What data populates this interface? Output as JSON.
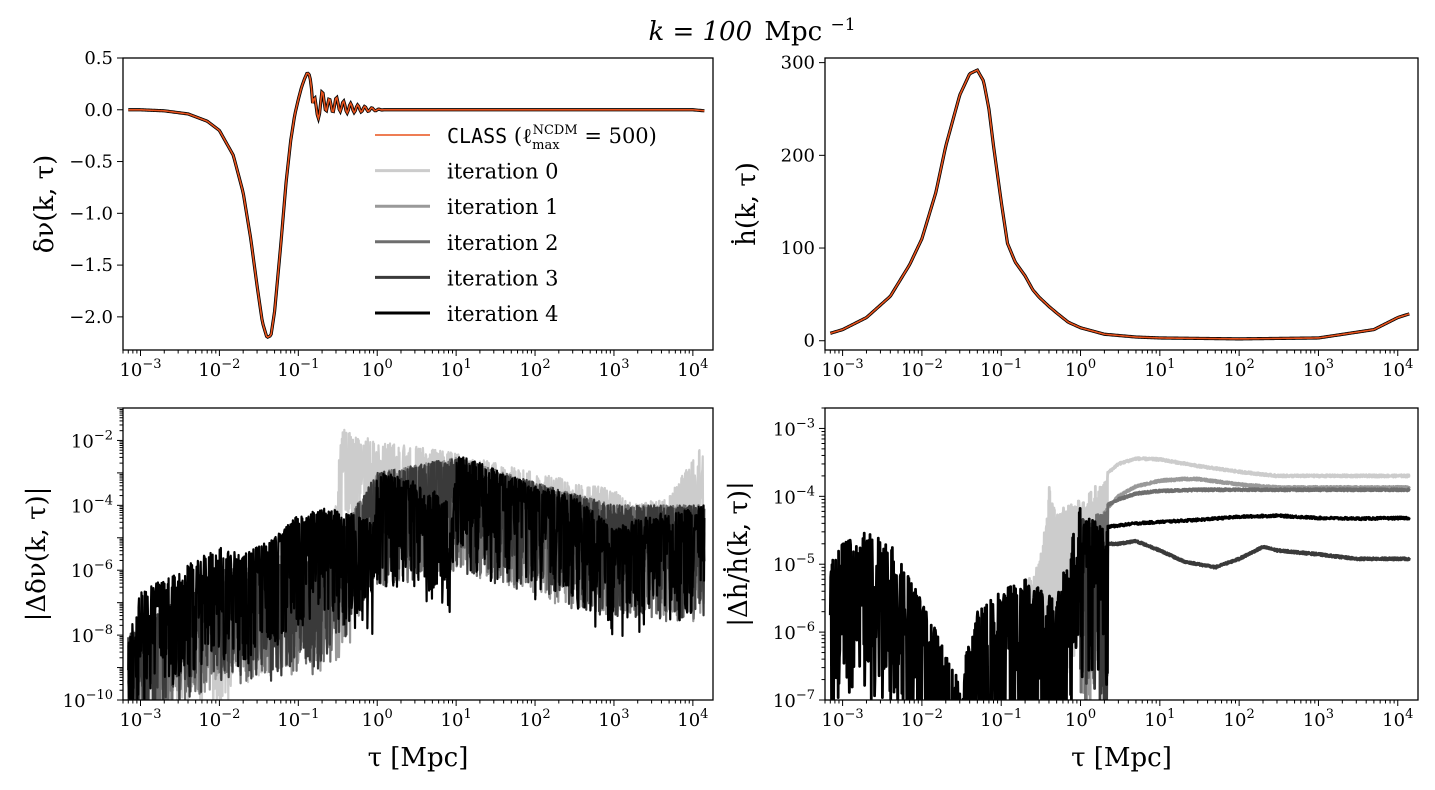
{
  "figure": {
    "suptitle_k": "k = 100",
    "suptitle_unit": "Mpc",
    "suptitle_exp": "−1"
  },
  "colors": {
    "class": "#e8521c",
    "iteration_0": "#cccccc",
    "iteration_1": "#999999",
    "iteration_2": "#6e6e6e",
    "iteration_3": "#3a3a3a",
    "iteration_4": "#000000"
  },
  "chart_data": [
    {
      "id": "delta_nu",
      "type": "line",
      "x_scale": "log",
      "xlim": [
        0.0006,
        18000
      ],
      "ylim": [
        -2.32,
        0.5
      ],
      "xticks": [
        0.001,
        0.01,
        0.1,
        1,
        10,
        100,
        1000,
        10000
      ],
      "xtick_labels": [
        [
          "10",
          "−3"
        ],
        [
          "10",
          "−2"
        ],
        [
          "10",
          "−1"
        ],
        [
          "10",
          "0"
        ],
        [
          "10",
          "1"
        ],
        [
          "10",
          "2"
        ],
        [
          "10",
          "3"
        ],
        [
          "10",
          "4"
        ]
      ],
      "yticks": [
        0.5,
        0.0,
        -0.5,
        -1.0,
        -1.5,
        -2.0
      ],
      "ytick_labels": [
        "0.5",
        "0.0",
        "−0.5",
        "−1.0",
        "−1.5",
        "−2.0"
      ],
      "ylabel": "δν(k, τ)",
      "xlabel": "",
      "legend_position": "center-right",
      "legend": [
        {
          "prefix": "CLASS",
          "label": " (ℓ",
          "sup": "NCDM",
          "sub": "max",
          "suffix": " = 500)",
          "color_key": "class"
        },
        {
          "label": "iteration 0",
          "color_key": "iteration_0"
        },
        {
          "label": "iteration 1",
          "color_key": "iteration_1"
        },
        {
          "label": "iteration 2",
          "color_key": "iteration_2"
        },
        {
          "label": "iteration 3",
          "color_key": "iteration_3"
        },
        {
          "label": "iteration 4",
          "color_key": "iteration_4"
        }
      ],
      "series": [
        {
          "name": "CLASS (ℓmax NCDM = 500)",
          "x": [
            0.0007,
            0.001,
            0.002,
            0.004,
            0.007,
            0.01,
            0.015,
            0.02,
            0.025,
            0.03,
            0.035,
            0.04,
            0.045,
            0.05,
            0.06,
            0.07,
            0.08,
            0.09,
            0.1,
            0.11,
            0.12,
            0.13,
            0.14,
            0.15,
            0.17,
            0.2,
            0.25,
            0.3,
            0.4,
            0.6,
            1,
            3,
            10,
            100,
            1000,
            10000,
            14000
          ],
          "y": [
            0.0,
            0.0,
            -0.01,
            -0.04,
            -0.11,
            -0.2,
            -0.44,
            -0.8,
            -1.25,
            -1.7,
            -2.05,
            -2.2,
            -2.18,
            -1.95,
            -1.3,
            -0.7,
            -0.3,
            -0.05,
            0.1,
            0.22,
            0.3,
            0.36,
            0.33,
            0.15,
            -0.05,
            0.1,
            0.03,
            0.06,
            0.02,
            0.01,
            0.0,
            0.0,
            0.0,
            0.0,
            0.0,
            0.0,
            -0.01
          ]
        }
      ]
    },
    {
      "id": "hdot",
      "type": "line",
      "x_scale": "log",
      "xlim": [
        0.0006,
        18000
      ],
      "ylim": [
        -10,
        305
      ],
      "xticks": [
        0.001,
        0.01,
        0.1,
        1,
        10,
        100,
        1000,
        10000
      ],
      "xtick_labels": [
        [
          "10",
          "−3"
        ],
        [
          "10",
          "−2"
        ],
        [
          "10",
          "−1"
        ],
        [
          "10",
          "0"
        ],
        [
          "10",
          "1"
        ],
        [
          "10",
          "2"
        ],
        [
          "10",
          "3"
        ],
        [
          "10",
          "4"
        ]
      ],
      "yticks": [
        300,
        200,
        100,
        0
      ],
      "ytick_labels": [
        "300",
        "200",
        "100",
        "0"
      ],
      "ylabel": "ḣ(k, τ)",
      "xlabel": "",
      "series": [
        {
          "name": "CLASS",
          "x": [
            0.0007,
            0.001,
            0.002,
            0.004,
            0.007,
            0.01,
            0.015,
            0.02,
            0.03,
            0.04,
            0.05,
            0.06,
            0.07,
            0.08,
            0.1,
            0.12,
            0.15,
            0.2,
            0.25,
            0.3,
            0.4,
            0.5,
            0.7,
            1,
            2,
            5,
            10,
            100,
            1000,
            5000,
            10000,
            14000
          ],
          "y": [
            8,
            12,
            25,
            48,
            82,
            110,
            160,
            210,
            265,
            288,
            292,
            280,
            250,
            210,
            150,
            105,
            85,
            70,
            55,
            47,
            37,
            30,
            20,
            14,
            7,
            4,
            3,
            2,
            3,
            12,
            25,
            29
          ]
        }
      ]
    },
    {
      "id": "delta_nu_error",
      "type": "line",
      "x_scale": "log",
      "y_scale": "log",
      "xlim": [
        0.0006,
        18000
      ],
      "ylim": [
        1e-10,
        0.1
      ],
      "xticks": [
        0.001,
        0.01,
        0.1,
        1,
        10,
        100,
        1000,
        10000
      ],
      "xtick_labels": [
        [
          "10",
          "−3"
        ],
        [
          "10",
          "−2"
        ],
        [
          "10",
          "−1"
        ],
        [
          "10",
          "0"
        ],
        [
          "10",
          "1"
        ],
        [
          "10",
          "2"
        ],
        [
          "10",
          "3"
        ],
        [
          "10",
          "4"
        ]
      ],
      "yticks": [
        0.01,
        0.0001,
        1e-06,
        1e-08,
        1e-10
      ],
      "ytick_labels": [
        [
          "10",
          "−2"
        ],
        [
          "10",
          "−4"
        ],
        [
          "10",
          "−6"
        ],
        [
          "10",
          "−8"
        ],
        [
          "10",
          "−10"
        ]
      ],
      "ylabel": "|Δδν(k, τ)|",
      "xlabel": "τ [Mpc]",
      "series": [
        {
          "name": "iteration 0",
          "x": [
            0.0007,
            0.001,
            0.005,
            0.011,
            0.02,
            0.1,
            0.3,
            0.35,
            0.5,
            1,
            10,
            100,
            1000,
            2000,
            5000,
            14000
          ],
          "y": [
            1e-08,
            3e-08,
            2e-07,
            1e-07,
            1e-06,
            5e-06,
            0.0001,
            0.03,
            0.015,
            0.01,
            0.004,
            0.001,
            0.0003,
            0.0001,
            0.0002,
            0.01
          ]
        },
        {
          "name": "iteration 1",
          "x": [
            0.0007,
            0.01,
            0.2,
            0.4,
            1,
            10,
            100,
            1000,
            14000
          ],
          "y": [
            1e-08,
            1e-06,
            2e-06,
            1e-05,
            0.001,
            0.003,
            0.0005,
            0.0001,
            0.0001
          ]
        },
        {
          "name": "iteration 2",
          "x": [
            0.0007,
            0.01,
            0.2,
            1,
            10,
            100,
            1000,
            14000
          ],
          "y": [
            1e-08,
            1e-06,
            2e-06,
            0.001,
            0.003,
            0.0005,
            0.0001,
            0.0001
          ]
        },
        {
          "name": "iteration 3",
          "x": [
            0.0007,
            0.01,
            0.2,
            1,
            10,
            100,
            1000,
            14000
          ],
          "y": [
            1e-08,
            1e-06,
            2e-06,
            0.001,
            0.003,
            0.0005,
            0.0001,
            0.0001
          ]
        },
        {
          "name": "iteration 4",
          "x": [
            0.0007,
            0.001,
            0.003,
            0.01,
            0.02,
            0.05,
            0.1,
            0.2,
            0.5,
            0.9,
            1,
            2,
            5,
            9,
            10,
            20,
            50,
            100,
            300,
            1000,
            3000,
            14000
          ],
          "y": [
            1e-08,
            2e-07,
            1e-06,
            6e-06,
            3e-06,
            1e-05,
            5e-05,
            8e-05,
            6e-05,
            3e-05,
            0.001,
            0.0008,
            0.0003,
            0.0001,
            0.004,
            0.002,
            0.0008,
            0.0004,
            0.0002,
            2e-05,
            5e-05,
            0.0001
          ]
        }
      ]
    },
    {
      "id": "hdot_error",
      "type": "line",
      "x_scale": "log",
      "y_scale": "log",
      "xlim": [
        0.0006,
        18000
      ],
      "ylim": [
        1e-07,
        0.002
      ],
      "xticks": [
        0.001,
        0.01,
        0.1,
        1,
        10,
        100,
        1000,
        10000
      ],
      "xtick_labels": [
        [
          "10",
          "−3"
        ],
        [
          "10",
          "−2"
        ],
        [
          "10",
          "−1"
        ],
        [
          "10",
          "0"
        ],
        [
          "10",
          "1"
        ],
        [
          "10",
          "2"
        ],
        [
          "10",
          "3"
        ],
        [
          "10",
          "4"
        ]
      ],
      "yticks": [
        0.001,
        0.0001,
        1e-05,
        1e-06,
        1e-07
      ],
      "ytick_labels": [
        [
          "10",
          "−3"
        ],
        [
          "10",
          "−4"
        ],
        [
          "10",
          "−5"
        ],
        [
          "10",
          "−6"
        ],
        [
          "10",
          "−7"
        ]
      ],
      "ylabel": "|Δḣ/ḣ(k, τ)|",
      "xlabel": "τ [Mpc]",
      "series": [
        {
          "name": "iteration 0",
          "x": [
            0.2,
            0.3,
            0.35,
            0.4,
            0.5,
            0.8,
            1.2,
            2,
            3,
            5,
            10,
            30,
            100,
            300,
            1000,
            14000
          ],
          "y": [
            5e-06,
            1e-05,
            3e-05,
            0.00014,
            6e-05,
            8e-05,
            0.0001,
            0.0002,
            0.0003,
            0.00036,
            0.00035,
            0.00028,
            0.00023,
            0.0002,
            0.0002,
            0.0002
          ]
        },
        {
          "name": "iteration 1",
          "x": [
            1,
            1.5,
            2,
            3,
            5,
            10,
            20,
            30,
            100,
            300,
            1000,
            14000
          ],
          "y": [
            2e-05,
            3e-05,
            6e-05,
            0.0001,
            0.00014,
            0.00017,
            0.00018,
            0.00018,
            0.00015,
            0.000135,
            0.000135,
            0.000135
          ]
        },
        {
          "name": "iteration 2",
          "x": [
            1,
            1.5,
            2,
            3,
            5,
            10,
            30,
            100,
            300,
            1000,
            14000
          ],
          "y": [
            3e-05,
            5e-05,
            7e-05,
            9e-05,
            0.00011,
            0.00012,
            0.000125,
            0.000125,
            0.000125,
            0.000125,
            0.000125
          ]
        },
        {
          "name": "iteration 3",
          "x": [
            1,
            1.5,
            2,
            3,
            5,
            10,
            20,
            50,
            100,
            200,
            300,
            1000,
            3000,
            14000
          ],
          "y": [
            5e-05,
            3e-05,
            2e-05,
            2e-05,
            2.2e-05,
            1.6e-05,
            1.1e-05,
            9e-06,
            1.2e-05,
            1.8e-05,
            1.6e-05,
            1.4e-05,
            1.2e-05,
            1.2e-05
          ]
        },
        {
          "name": "iteration 4",
          "x": [
            0.0007,
            0.001,
            0.002,
            0.004,
            0.007,
            0.01,
            0.02,
            0.03,
            0.05,
            0.1,
            0.2,
            0.5,
            1,
            1.2,
            2,
            5,
            10,
            30,
            100,
            300,
            1000,
            3000,
            14000
          ],
          "y": [
            1e-05,
            2e-05,
            3e-05,
            2e-05,
            6e-06,
            3e-06,
            5e-07,
            2e-07,
            2e-06,
            4e-06,
            6e-06,
            3e-06,
            7e-05,
            5e-05,
            3.5e-05,
            4e-05,
            4.2e-05,
            4.5e-05,
            5e-05,
            5.2e-05,
            4.8e-05,
            4.7e-05,
            4.8e-05
          ]
        }
      ]
    }
  ]
}
